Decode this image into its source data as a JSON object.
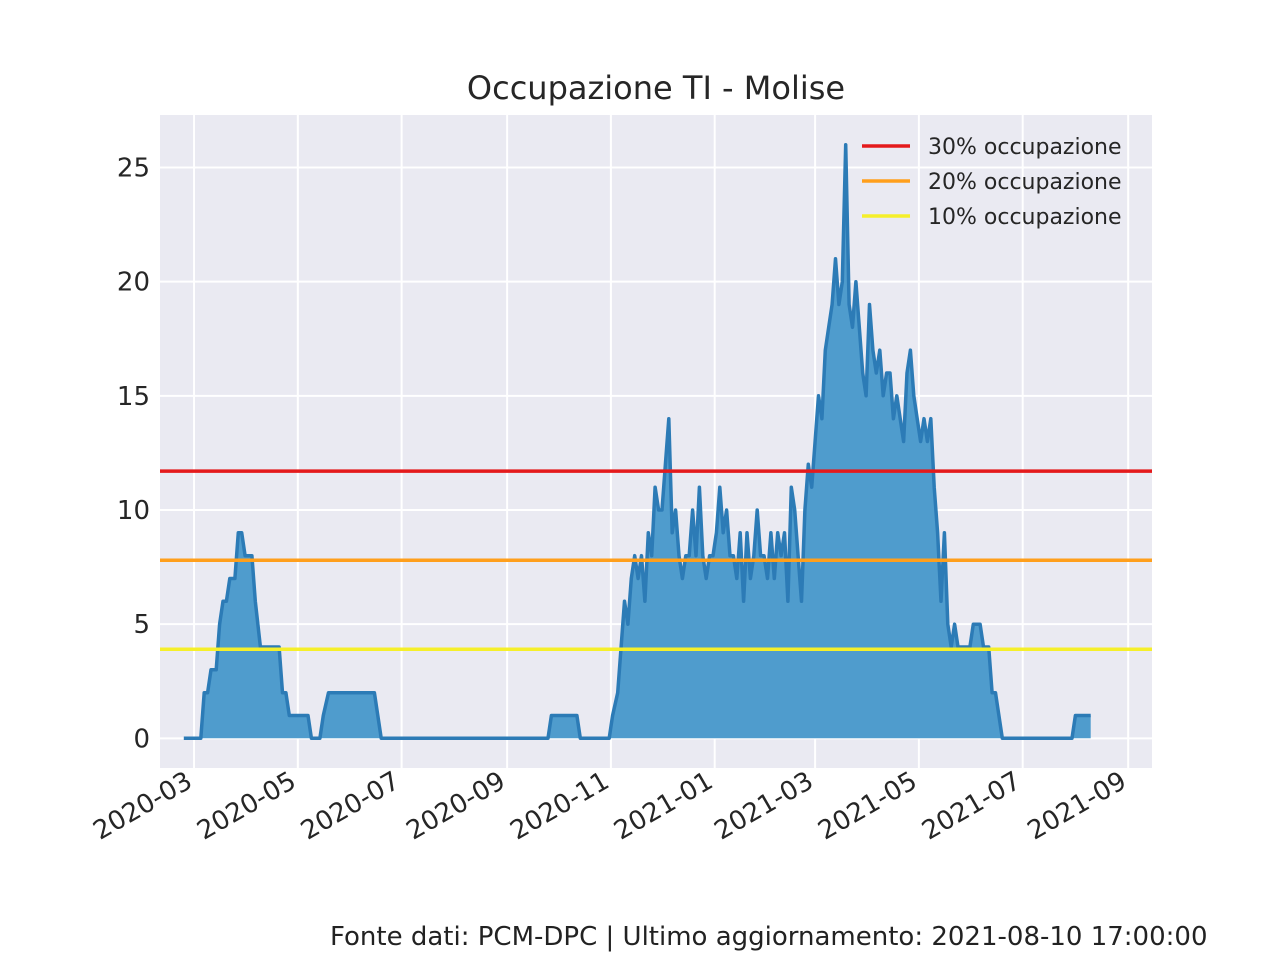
{
  "chart_data": {
    "type": "area",
    "title": "Occupazione TI - Molise",
    "xlabel": "",
    "ylabel": "",
    "ylim": [
      -1.3,
      27.3
    ],
    "xlim": [
      "2020-02-10",
      "2021-09-15"
    ],
    "yticks": [
      0,
      5,
      10,
      15,
      20,
      25
    ],
    "xticks": [
      "2020-03",
      "2020-05",
      "2020-07",
      "2020-09",
      "2020-11",
      "2021-01",
      "2021-03",
      "2021-05",
      "2021-07",
      "2021-09"
    ],
    "grid": true,
    "legend_position": "top-right",
    "series": [
      {
        "name": "",
        "color": "#2c7bb6",
        "points": [
          [
            "2020-02-24",
            0
          ],
          [
            "2020-03-05",
            0
          ],
          [
            "2020-03-07",
            2
          ],
          [
            "2020-03-09",
            2
          ],
          [
            "2020-03-11",
            3
          ],
          [
            "2020-03-14",
            3
          ],
          [
            "2020-03-16",
            5
          ],
          [
            "2020-03-18",
            6
          ],
          [
            "2020-03-20",
            6
          ],
          [
            "2020-03-22",
            7
          ],
          [
            "2020-03-25",
            7
          ],
          [
            "2020-03-27",
            9
          ],
          [
            "2020-03-29",
            9
          ],
          [
            "2020-03-31",
            8
          ],
          [
            "2020-04-04",
            8
          ],
          [
            "2020-04-06",
            6
          ],
          [
            "2020-04-09",
            4
          ],
          [
            "2020-04-20",
            4
          ],
          [
            "2020-04-22",
            2
          ],
          [
            "2020-04-24",
            2
          ],
          [
            "2020-04-26",
            1
          ],
          [
            "2020-05-07",
            1
          ],
          [
            "2020-05-09",
            0
          ],
          [
            "2020-05-14",
            0
          ],
          [
            "2020-05-16",
            1
          ],
          [
            "2020-05-19",
            2
          ],
          [
            "2020-06-15",
            2
          ],
          [
            "2020-06-17",
            1
          ],
          [
            "2020-06-19",
            0
          ],
          [
            "2020-09-25",
            0
          ],
          [
            "2020-09-27",
            1
          ],
          [
            "2020-10-12",
            1
          ],
          [
            "2020-10-14",
            0
          ],
          [
            "2020-10-31",
            0
          ],
          [
            "2020-11-02",
            1
          ],
          [
            "2020-11-05",
            2
          ],
          [
            "2020-11-07",
            4
          ],
          [
            "2020-11-09",
            6
          ],
          [
            "2020-11-11",
            5
          ],
          [
            "2020-11-13",
            7
          ],
          [
            "2020-11-15",
            8
          ],
          [
            "2020-11-17",
            7
          ],
          [
            "2020-11-19",
            8
          ],
          [
            "2020-11-21",
            6
          ],
          [
            "2020-11-23",
            9
          ],
          [
            "2020-11-25",
            8
          ],
          [
            "2020-11-27",
            11
          ],
          [
            "2020-11-29",
            10
          ],
          [
            "2020-12-01",
            10
          ],
          [
            "2020-12-03",
            12
          ],
          [
            "2020-12-05",
            14
          ],
          [
            "2020-12-07",
            9
          ],
          [
            "2020-12-09",
            10
          ],
          [
            "2020-12-11",
            8
          ],
          [
            "2020-12-13",
            7
          ],
          [
            "2020-12-15",
            8
          ],
          [
            "2020-12-17",
            8
          ],
          [
            "2020-12-19",
            10
          ],
          [
            "2020-12-21",
            8
          ],
          [
            "2020-12-23",
            11
          ],
          [
            "2020-12-25",
            8
          ],
          [
            "2020-12-27",
            7
          ],
          [
            "2020-12-29",
            8
          ],
          [
            "2020-12-31",
            8
          ],
          [
            "2021-01-02",
            9
          ],
          [
            "2021-01-04",
            11
          ],
          [
            "2021-01-06",
            9
          ],
          [
            "2021-01-08",
            10
          ],
          [
            "2021-01-10",
            8
          ],
          [
            "2021-01-12",
            8
          ],
          [
            "2021-01-14",
            7
          ],
          [
            "2021-01-16",
            9
          ],
          [
            "2021-01-18",
            6
          ],
          [
            "2021-01-20",
            9
          ],
          [
            "2021-01-22",
            7
          ],
          [
            "2021-01-24",
            8
          ],
          [
            "2021-01-26",
            10
          ],
          [
            "2021-01-28",
            8
          ],
          [
            "2021-01-30",
            8
          ],
          [
            "2021-02-01",
            7
          ],
          [
            "2021-02-03",
            9
          ],
          [
            "2021-02-05",
            7
          ],
          [
            "2021-02-07",
            9
          ],
          [
            "2021-02-09",
            8
          ],
          [
            "2021-02-11",
            9
          ],
          [
            "2021-02-13",
            6
          ],
          [
            "2021-02-15",
            11
          ],
          [
            "2021-02-17",
            10
          ],
          [
            "2021-02-19",
            8
          ],
          [
            "2021-02-21",
            6
          ],
          [
            "2021-02-23",
            10
          ],
          [
            "2021-02-25",
            12
          ],
          [
            "2021-02-27",
            11
          ],
          [
            "2021-03-01",
            13
          ],
          [
            "2021-03-03",
            15
          ],
          [
            "2021-03-05",
            14
          ],
          [
            "2021-03-07",
            17
          ],
          [
            "2021-03-09",
            18
          ],
          [
            "2021-03-11",
            19
          ],
          [
            "2021-03-13",
            21
          ],
          [
            "2021-03-15",
            19
          ],
          [
            "2021-03-17",
            20
          ],
          [
            "2021-03-19",
            26
          ],
          [
            "2021-03-21",
            19
          ],
          [
            "2021-03-23",
            18
          ],
          [
            "2021-03-25",
            20
          ],
          [
            "2021-03-27",
            18
          ],
          [
            "2021-03-29",
            16
          ],
          [
            "2021-03-31",
            15
          ],
          [
            "2021-04-02",
            19
          ],
          [
            "2021-04-04",
            17
          ],
          [
            "2021-04-06",
            16
          ],
          [
            "2021-04-08",
            17
          ],
          [
            "2021-04-10",
            15
          ],
          [
            "2021-04-12",
            16
          ],
          [
            "2021-04-14",
            16
          ],
          [
            "2021-04-16",
            14
          ],
          [
            "2021-04-18",
            15
          ],
          [
            "2021-04-20",
            14
          ],
          [
            "2021-04-22",
            13
          ],
          [
            "2021-04-24",
            16
          ],
          [
            "2021-04-26",
            17
          ],
          [
            "2021-04-28",
            15
          ],
          [
            "2021-04-30",
            14
          ],
          [
            "2021-05-02",
            13
          ],
          [
            "2021-05-04",
            14
          ],
          [
            "2021-05-06",
            13
          ],
          [
            "2021-05-08",
            14
          ],
          [
            "2021-05-10",
            11
          ],
          [
            "2021-05-12",
            9
          ],
          [
            "2021-05-14",
            6
          ],
          [
            "2021-05-16",
            9
          ],
          [
            "2021-05-18",
            5
          ],
          [
            "2021-05-20",
            4
          ],
          [
            "2021-05-22",
            5
          ],
          [
            "2021-05-24",
            4
          ],
          [
            "2021-05-31",
            4
          ],
          [
            "2021-06-02",
            5
          ],
          [
            "2021-06-06",
            5
          ],
          [
            "2021-06-08",
            4
          ],
          [
            "2021-06-11",
            4
          ],
          [
            "2021-06-13",
            2
          ],
          [
            "2021-06-15",
            2
          ],
          [
            "2021-06-17",
            1
          ],
          [
            "2021-06-19",
            0
          ],
          [
            "2021-07-30",
            0
          ],
          [
            "2021-08-01",
            1
          ],
          [
            "2021-08-10",
            1
          ]
        ]
      }
    ],
    "thresholds": [
      {
        "name": "30% occupazione",
        "value": 11.7,
        "color": "#e41a1c"
      },
      {
        "name": "20% occupazione",
        "value": 7.8,
        "color": "#ff9f1c"
      },
      {
        "name": "10% occupazione",
        "value": 3.9,
        "color": "#f5ef2a"
      }
    ]
  },
  "footer": "Fonte dati: PCM-DPC | Ultimo aggiornamento: 2021-08-10 17:00:00"
}
